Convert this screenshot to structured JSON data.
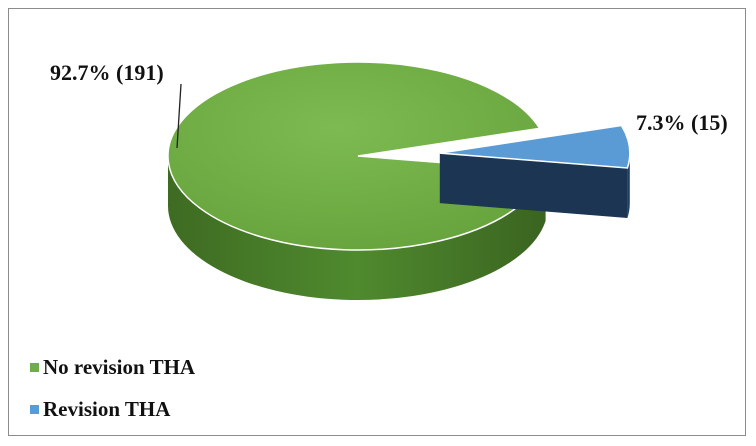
{
  "chart_data": {
    "type": "pie",
    "title": "",
    "categories": [
      "No revision THA",
      "Revision THA"
    ],
    "values": [
      191,
      15
    ],
    "percentages": [
      92.7,
      7.3
    ],
    "data_labels": [
      "92.7% (191)",
      "7.3% (15)"
    ],
    "colors": [
      "#70ad47",
      "#5b9bd5"
    ],
    "side_colors": [
      "#4a7a2a",
      "#1f3f63"
    ],
    "legend_position": "bottom-left",
    "style": "3d-exploded"
  },
  "legend": {
    "items": [
      {
        "label": "No revision THA",
        "color": "#70ad47"
      },
      {
        "label": "Revision THA",
        "color": "#5b9bd5"
      }
    ]
  }
}
